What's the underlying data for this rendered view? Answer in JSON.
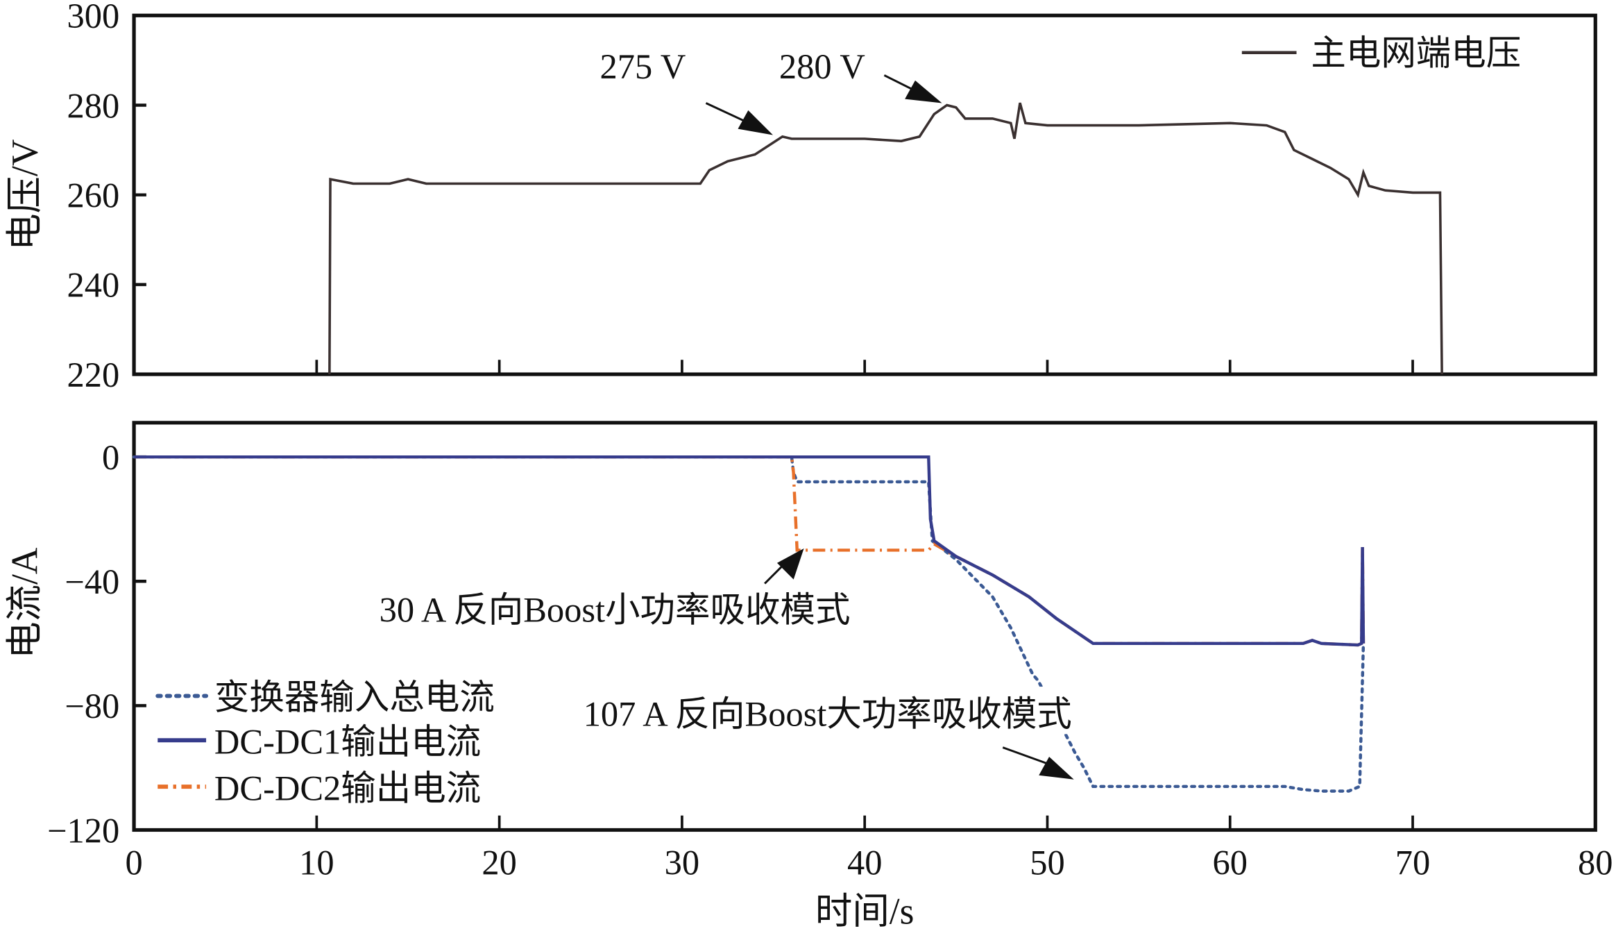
{
  "chart_data": [
    {
      "type": "line",
      "title": "",
      "xlabel": "",
      "ylabel": "电压/V",
      "xlim": [
        0,
        80
      ],
      "ylim": [
        220,
        300
      ],
      "yticks": [
        "220",
        "240",
        "260",
        "280",
        "300"
      ],
      "legend": {
        "placement": "top-right",
        "entries": [
          "主电网端电压"
        ]
      },
      "annotations": [
        "275 V",
        "280 V"
      ],
      "series": [
        {
          "name": "主电网端电压",
          "color": "#3a3030",
          "x": [
            10.7,
            10.75,
            12,
            14,
            15,
            16,
            20,
            25,
            31,
            31.5,
            32.5,
            34,
            35.5,
            36,
            40,
            42,
            43,
            43.8,
            44.5,
            45,
            45.5,
            47,
            48,
            48.2,
            48.5,
            48.8,
            50,
            55,
            60,
            62,
            63,
            63.5,
            64.5,
            65.5,
            66.5,
            67,
            67.3,
            67.6,
            68.5,
            70,
            71.5,
            71.6
          ],
          "y": [
            220,
            263.5,
            262.5,
            262.5,
            263.5,
            262.5,
            262.5,
            262.5,
            262.5,
            265.5,
            267.5,
            269,
            273,
            272.5,
            272.5,
            272,
            273,
            278,
            280,
            279.5,
            277,
            277,
            276,
            272.5,
            280.5,
            276,
            275.5,
            275.5,
            276,
            275.5,
            274,
            270,
            268,
            266,
            263.5,
            260,
            265,
            262,
            261,
            260.5,
            260.5,
            220
          ]
        }
      ]
    },
    {
      "type": "line",
      "title": "",
      "xlabel": "时间/s",
      "ylabel": "电流/A",
      "xlim": [
        0,
        80
      ],
      "ylim": [
        -120,
        11
      ],
      "xticks": [
        "0",
        "10",
        "20",
        "30",
        "40",
        "50",
        "60",
        "70",
        "80"
      ],
      "yticks": [
        "0",
        "−40",
        "−80",
        "−120"
      ],
      "legend": {
        "placement": "bottom-left",
        "entries": [
          "变换器输入总电流",
          "DC-DC1输出电流",
          "DC-DC2输出电流"
        ]
      },
      "annotations": [
        "30 A 反向Boost小功率吸收模式",
        "107 A 反向Boost大功率吸收模式"
      ],
      "series": [
        {
          "name": "变换器输入总电流",
          "color": "#3b5a94",
          "style": "dotted",
          "x": [
            0,
            36,
            36.1,
            36.3,
            43.5,
            43.7,
            45,
            47,
            48,
            48.8,
            49.2,
            49.5,
            51.5,
            52,
            52.5,
            63,
            64,
            65,
            66.5,
            67.1,
            67.3
          ],
          "y": [
            0,
            0,
            -5,
            -8,
            -8,
            -27,
            -33,
            -45,
            -55,
            -65,
            -70,
            -72,
            -95,
            -100,
            -106,
            -106,
            -107,
            -107.5,
            -107.5,
            -106,
            -60
          ]
        },
        {
          "name": "DC-DC1输出电流",
          "color": "#363c8c",
          "style": "solid",
          "x": [
            0,
            36,
            43.5,
            43.6,
            43.8,
            45,
            47,
            49,
            50.5,
            52.5,
            60,
            64,
            64.5,
            65,
            67,
            67.2,
            67.25,
            67.3
          ],
          "y": [
            0,
            0,
            0,
            -20,
            -27,
            -32,
            -38,
            -45,
            -52,
            -60,
            -60,
            -60,
            -59,
            -60,
            -60.5,
            -60,
            -29,
            -60
          ]
        },
        {
          "name": "DC-DC2输出电流",
          "color": "#e8702a",
          "style": "dash-dot",
          "x": [
            0,
            36,
            36.1,
            36.3,
            43.5,
            43.8,
            45,
            47,
            49,
            50.5,
            52.5,
            60,
            64,
            64.5,
            65,
            67,
            67.2,
            67.25,
            67.3
          ],
          "y": [
            0,
            0,
            -5,
            -30,
            -30,
            -28,
            -32,
            -38,
            -45,
            -52,
            -60,
            -60,
            -60,
            -59,
            -60,
            -60.5,
            -60,
            -29,
            -60
          ]
        }
      ]
    }
  ]
}
